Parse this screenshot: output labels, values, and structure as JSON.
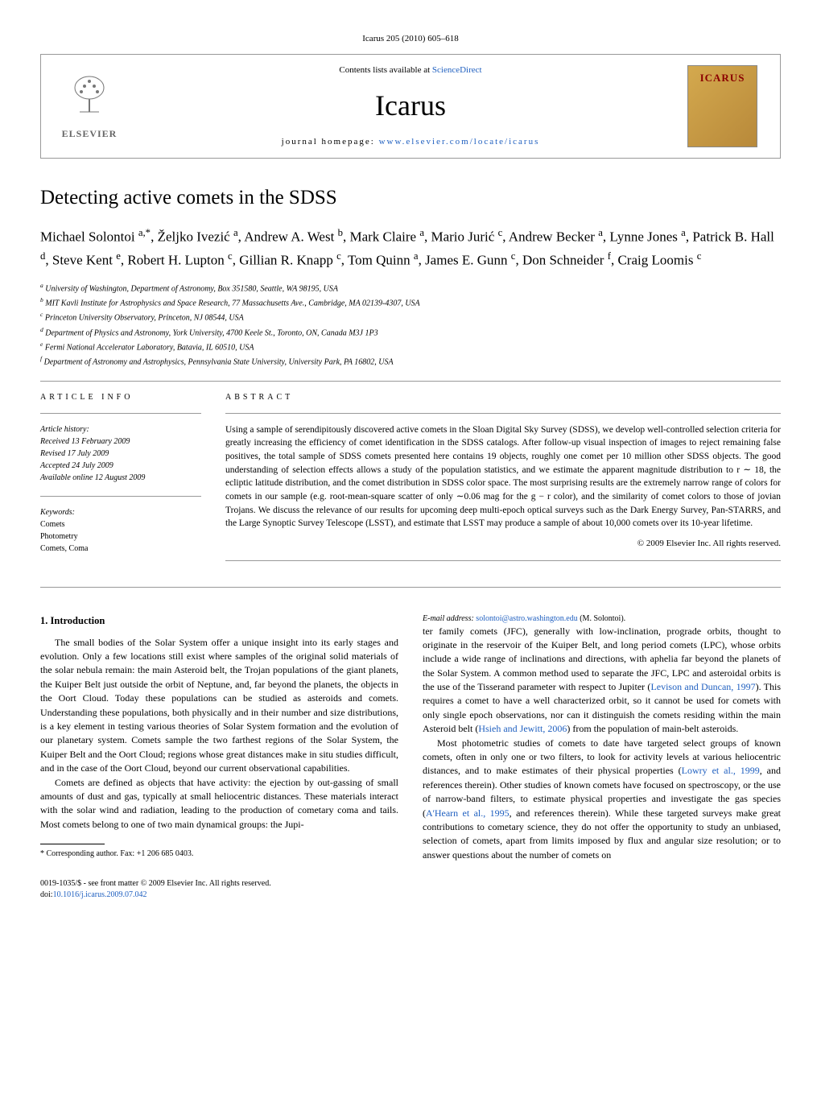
{
  "journal_ref": "Icarus 205 (2010) 605–618",
  "header": {
    "elsevier": "ELSEVIER",
    "contents_prefix": "Contents lists available at ",
    "contents_link": "ScienceDirect",
    "journal_name": "Icarus",
    "homepage_prefix": "journal homepage: ",
    "homepage_link": "www.elsevier.com/locate/icarus",
    "icarus_logo_text": "ICARUS"
  },
  "title": "Detecting active comets in the SDSS",
  "authors_html": "Michael Solontoi <sup>a,*</sup>, Željko Ivezić <sup>a</sup>, Andrew A. West <sup>b</sup>, Mark Claire <sup>a</sup>, Mario Jurić <sup>c</sup>, Andrew Becker <sup>a</sup>, Lynne Jones <sup>a</sup>, Patrick B. Hall <sup>d</sup>, Steve Kent <sup>e</sup>, Robert H. Lupton <sup>c</sup>, Gillian R. Knapp <sup>c</sup>, Tom Quinn <sup>a</sup>, James E. Gunn <sup>c</sup>, Don Schneider <sup>f</sup>, Craig Loomis <sup>c</sup>",
  "affiliations": [
    "a University of Washington, Department of Astronomy, Box 351580, Seattle, WA 98195, USA",
    "b MIT Kavli Institute for Astrophysics and Space Research, 77 Massachusetts Ave., Cambridge, MA 02139-4307, USA",
    "c Princeton University Observatory, Princeton, NJ 08544, USA",
    "d Department of Physics and Astronomy, York University, 4700 Keele St., Toronto, ON, Canada M3J 1P3",
    "e Fermi National Accelerator Laboratory, Batavia, IL 60510, USA",
    "f Department of Astronomy and Astrophysics, Pennsylvania State University, University Park, PA 16802, USA"
  ],
  "article_info": {
    "header": "ARTICLE INFO",
    "history_label": "Article history:",
    "history": [
      "Received 13 February 2009",
      "Revised 17 July 2009",
      "Accepted 24 July 2009",
      "Available online 12 August 2009"
    ],
    "keywords_label": "Keywords:",
    "keywords": [
      "Comets",
      "Photometry",
      "Comets, Coma"
    ]
  },
  "abstract": {
    "header": "ABSTRACT",
    "text": "Using a sample of serendipitously discovered active comets in the Sloan Digital Sky Survey (SDSS), we develop well-controlled selection criteria for greatly increasing the efficiency of comet identification in the SDSS catalogs. After follow-up visual inspection of images to reject remaining false positives, the total sample of SDSS comets presented here contains 19 objects, roughly one comet per 10 million other SDSS objects. The good understanding of selection effects allows a study of the population statistics, and we estimate the apparent magnitude distribution to r ∼ 18, the ecliptic latitude distribution, and the comet distribution in SDSS color space. The most surprising results are the extremely narrow range of colors for comets in our sample (e.g. root-mean-square scatter of only ∼0.06 mag for the g − r color), and the similarity of comet colors to those of jovian Trojans. We discuss the relevance of our results for upcoming deep multi-epoch optical surveys such as the Dark Energy Survey, Pan-STARRS, and the Large Synoptic Survey Telescope (LSST), and estimate that LSST may produce a sample of about 10,000 comets over its 10-year lifetime.",
    "copyright": "© 2009 Elsevier Inc. All rights reserved."
  },
  "body": {
    "intro_heading": "1. Introduction",
    "p1": "The small bodies of the Solar System offer a unique insight into its early stages and evolution. Only a few locations still exist where samples of the original solid materials of the solar nebula remain: the main Asteroid belt, the Trojan populations of the giant planets, the Kuiper Belt just outside the orbit of Neptune, and, far beyond the planets, the objects in the Oort Cloud. Today these populations can be studied as asteroids and comets. Understanding these populations, both physically and in their number and size distributions, is a key element in testing various theories of Solar System formation and the evolution of our planetary system. Comets sample the two farthest regions of the Solar System, the Kuiper Belt and the Oort Cloud; regions whose great distances make in situ studies difficult, and in the case of the Oort Cloud, beyond our current observational capabilities.",
    "p2": "Comets are defined as objects that have activity: the ejection by out-gassing of small amounts of dust and gas, typically at small heliocentric distances. These materials interact with the solar wind and radiation, leading to the production of cometary coma and tails. Most comets belong to one of two main dynamical groups: the Jupi-",
    "p3_html": "ter family comets (JFC), generally with low-inclination, prograde orbits, thought to originate in the reservoir of the Kuiper Belt, and long period comets (LPC), whose orbits include a wide range of inclinations and directions, with aphelia far beyond the planets of the Solar System. A common method used to separate the JFC, LPC and asteroidal orbits is the use of the Tisserand parameter with respect to Jupiter (<span class=\"ref-link\">Levison and Duncan, 1997</span>). This requires a comet to have a well characterized orbit, so it cannot be used for comets with only single epoch observations, nor can it distinguish the comets residing within the main Asteroid belt (<span class=\"ref-link\">Hsieh and Jewitt, 2006</span>) from the population of main-belt asteroids.",
    "p4_html": "Most photometric studies of comets to date have targeted select groups of known comets, often in only one or two filters, to look for activity levels at various heliocentric distances, and to make estimates of their physical properties (<span class=\"ref-link\">Lowry et al., 1999</span>, and references therein). Other studies of known comets have focused on spectroscopy, or the use of narrow-band filters, to estimate physical properties and investigate the gas species (<span class=\"ref-link\">A'Hearn et al., 1995</span>, and references therein). While these targeted surveys make great contributions to cometary science, they do not offer the opportunity to study an unbiased, selection of comets, apart from limits imposed by flux and angular size resolution; or to answer questions about the number of comets on"
  },
  "footnote": {
    "corresponding": "* Corresponding author. Fax: +1 206 685 0403.",
    "email_label": "E-mail address: ",
    "email": "solontoi@astro.washington.edu",
    "email_suffix": " (M. Solontoi)."
  },
  "footer": {
    "line1": "0019-1035/$ - see front matter © 2009 Elsevier Inc. All rights reserved.",
    "doi_label": "doi:",
    "doi": "10.1016/j.icarus.2009.07.042"
  }
}
